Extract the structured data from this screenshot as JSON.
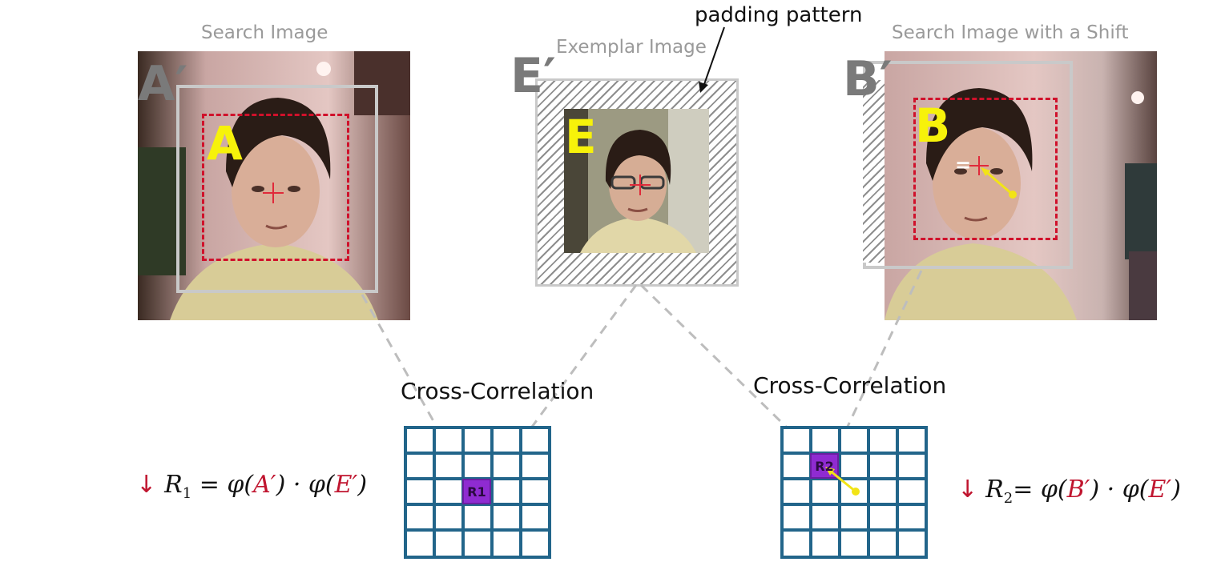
{
  "captions": {
    "search_image": "Search Image",
    "exemplar_image": "Exemplar Image",
    "search_image_shift": "Search Image with a Shift",
    "padding_pattern": "padding pattern"
  },
  "letters": {
    "a_prime": "A′",
    "a": "A",
    "e_prime": "E′",
    "e": "E",
    "b_prime": "B′",
    "b": "B",
    "equals": "="
  },
  "cross_correlation": {
    "left_title": "Cross-Correlation",
    "right_title": "Cross-Correlation",
    "left_cell": "R1",
    "right_cell": "R2"
  },
  "formulas": {
    "arrow": "↓",
    "r1_lhs": "R",
    "r1_sub": "1",
    "r1_eq": " = φ(",
    "r1_a": "A′",
    "r1_mid": ") · φ(",
    "r1_e": "E′",
    "r1_end": ")",
    "r2_lhs": "R",
    "r2_sub": "2",
    "r2_eq": "= φ(",
    "r2_b": "B′",
    "r2_mid": ") · φ(",
    "r2_e": "E′",
    "r2_end": ")"
  },
  "colors": {
    "grid": "#22658a",
    "highlight_cell": "#8f2bd1",
    "dashed_box": "#d0112b",
    "gray_box": "#c9c9c9",
    "letter_yellow": "#f7f20a",
    "prime_letter_gray": "#7a7a7a"
  }
}
